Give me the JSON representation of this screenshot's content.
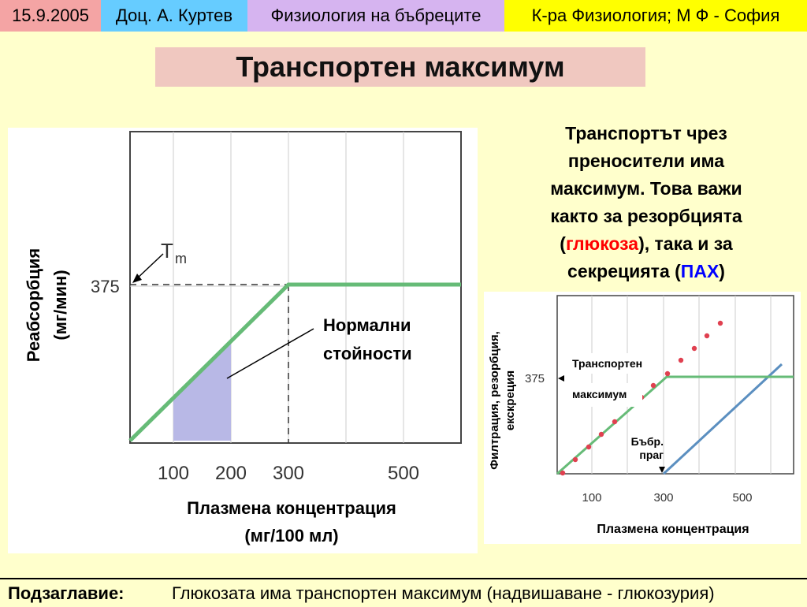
{
  "header": {
    "date": "15.9.2005",
    "author": "Доц. А. Куртев",
    "topic": "Физиология на бъбреците",
    "department": "К-ра Физиология; М Ф - София"
  },
  "title": "Транспортен максимум",
  "description": {
    "line1": "Транспортът чрез",
    "line2": "преносители има",
    "line3": "максимум. Това важи",
    "line4": "както за резорбцията",
    "line5_open": "(",
    "glucose": "глюкоза",
    "line5_rest": "), така и за",
    "line6_pre": "секрецията (",
    "pah": "ПАХ",
    "line6_post": ")"
  },
  "left_chart": {
    "ylabel_line1": "Реабсорбция",
    "ylabel_line2": "(мг/мин)",
    "xlabel_line1": "Плазмена концентрация",
    "xlabel_line2": "(мг/100 мл)",
    "tm_label": "T",
    "tm_sub": "m",
    "y_tick": "375",
    "x_ticks": [
      "100",
      "200",
      "300",
      "500"
    ],
    "annotation_line1": "Нормални",
    "annotation_line2": "стойности"
  },
  "right_chart": {
    "ylabel_line1": "Филтрация, резорбция,",
    "ylabel_line2": "екскреция",
    "y_tick": "375",
    "x_ticks": [
      "100",
      "300",
      "500"
    ],
    "xlabel": "Плазмена концентрация",
    "tm_line1": "Транспортен",
    "tm_line2": "максимум",
    "threshold_line1": "Бъбр.",
    "threshold_line2": "праг"
  },
  "footer": {
    "label": "Подзаглавие:",
    "text": "Глюкозата има транспортен максимум (надвишаване - глюкозурия)"
  },
  "colors": {
    "curve_green": "#66bb77",
    "area_fill": "#b8b8e6",
    "excretion_blue": "#5b8fc0",
    "filtration_dots": "#e04050"
  }
}
